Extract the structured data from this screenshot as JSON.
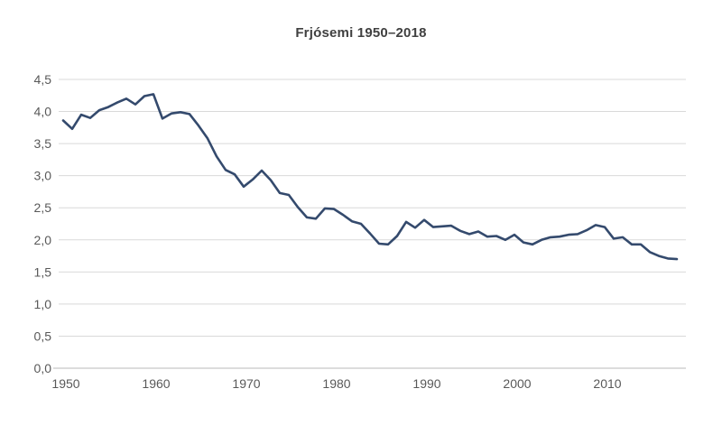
{
  "chart_data": {
    "type": "line",
    "title": "Frjósemi 1950–2018",
    "xlabel": "",
    "ylabel": "",
    "legend": "none",
    "grid": "horizontal",
    "decimal_separator": ",",
    "xlim": [
      1950,
      2018
    ],
    "ylim": [
      0,
      4.5
    ],
    "y_tick_step": 0.5,
    "y_tick_labels": [
      "0,0",
      "0,5",
      "1,0",
      "1,5",
      "2,0",
      "2,5",
      "3,0",
      "3,5",
      "4,0",
      "4,5"
    ],
    "x_ticks": [
      1950,
      1960,
      1970,
      1980,
      1990,
      2000,
      2010
    ],
    "x_tick_labels": [
      "1950",
      "1960",
      "1970",
      "1980",
      "1990",
      "2000",
      "2010"
    ],
    "series": [
      {
        "name": "Frjósemi",
        "x": [
          1950,
          1951,
          1952,
          1953,
          1954,
          1955,
          1956,
          1957,
          1958,
          1959,
          1960,
          1961,
          1962,
          1963,
          1964,
          1965,
          1966,
          1967,
          1968,
          1969,
          1970,
          1971,
          1972,
          1973,
          1974,
          1975,
          1976,
          1977,
          1978,
          1979,
          1980,
          1981,
          1982,
          1983,
          1984,
          1985,
          1986,
          1987,
          1988,
          1989,
          1990,
          1991,
          1992,
          1993,
          1994,
          1995,
          1996,
          1997,
          1998,
          1999,
          2000,
          2001,
          2002,
          2003,
          2004,
          2005,
          2006,
          2007,
          2008,
          2009,
          2010,
          2011,
          2012,
          2013,
          2014,
          2015,
          2016,
          2017,
          2018
        ],
        "values": [
          3.86,
          3.73,
          3.95,
          3.9,
          4.02,
          4.07,
          4.14,
          4.2,
          4.11,
          4.24,
          4.27,
          3.89,
          3.97,
          3.99,
          3.96,
          3.78,
          3.58,
          3.3,
          3.09,
          3.02,
          2.83,
          2.94,
          3.08,
          2.93,
          2.73,
          2.7,
          2.51,
          2.35,
          2.33,
          2.49,
          2.48,
          2.39,
          2.29,
          2.25,
          2.1,
          1.94,
          1.93,
          2.06,
          2.28,
          2.19,
          2.31,
          2.2,
          2.21,
          2.22,
          2.14,
          2.09,
          2.13,
          2.05,
          2.06,
          2.0,
          2.08,
          1.96,
          1.93,
          2.0,
          2.04,
          2.05,
          2.08,
          2.09,
          2.15,
          2.23,
          2.2,
          2.02,
          2.04,
          1.93,
          1.93,
          1.81,
          1.75,
          1.71,
          1.7
        ]
      }
    ]
  },
  "colors": {
    "line": "#344A6D",
    "gridline": "#D9D9D9",
    "axis": "#C6C6C6",
    "tick_label": "#595959",
    "title": "#404040",
    "background": "#FFFFFF"
  }
}
